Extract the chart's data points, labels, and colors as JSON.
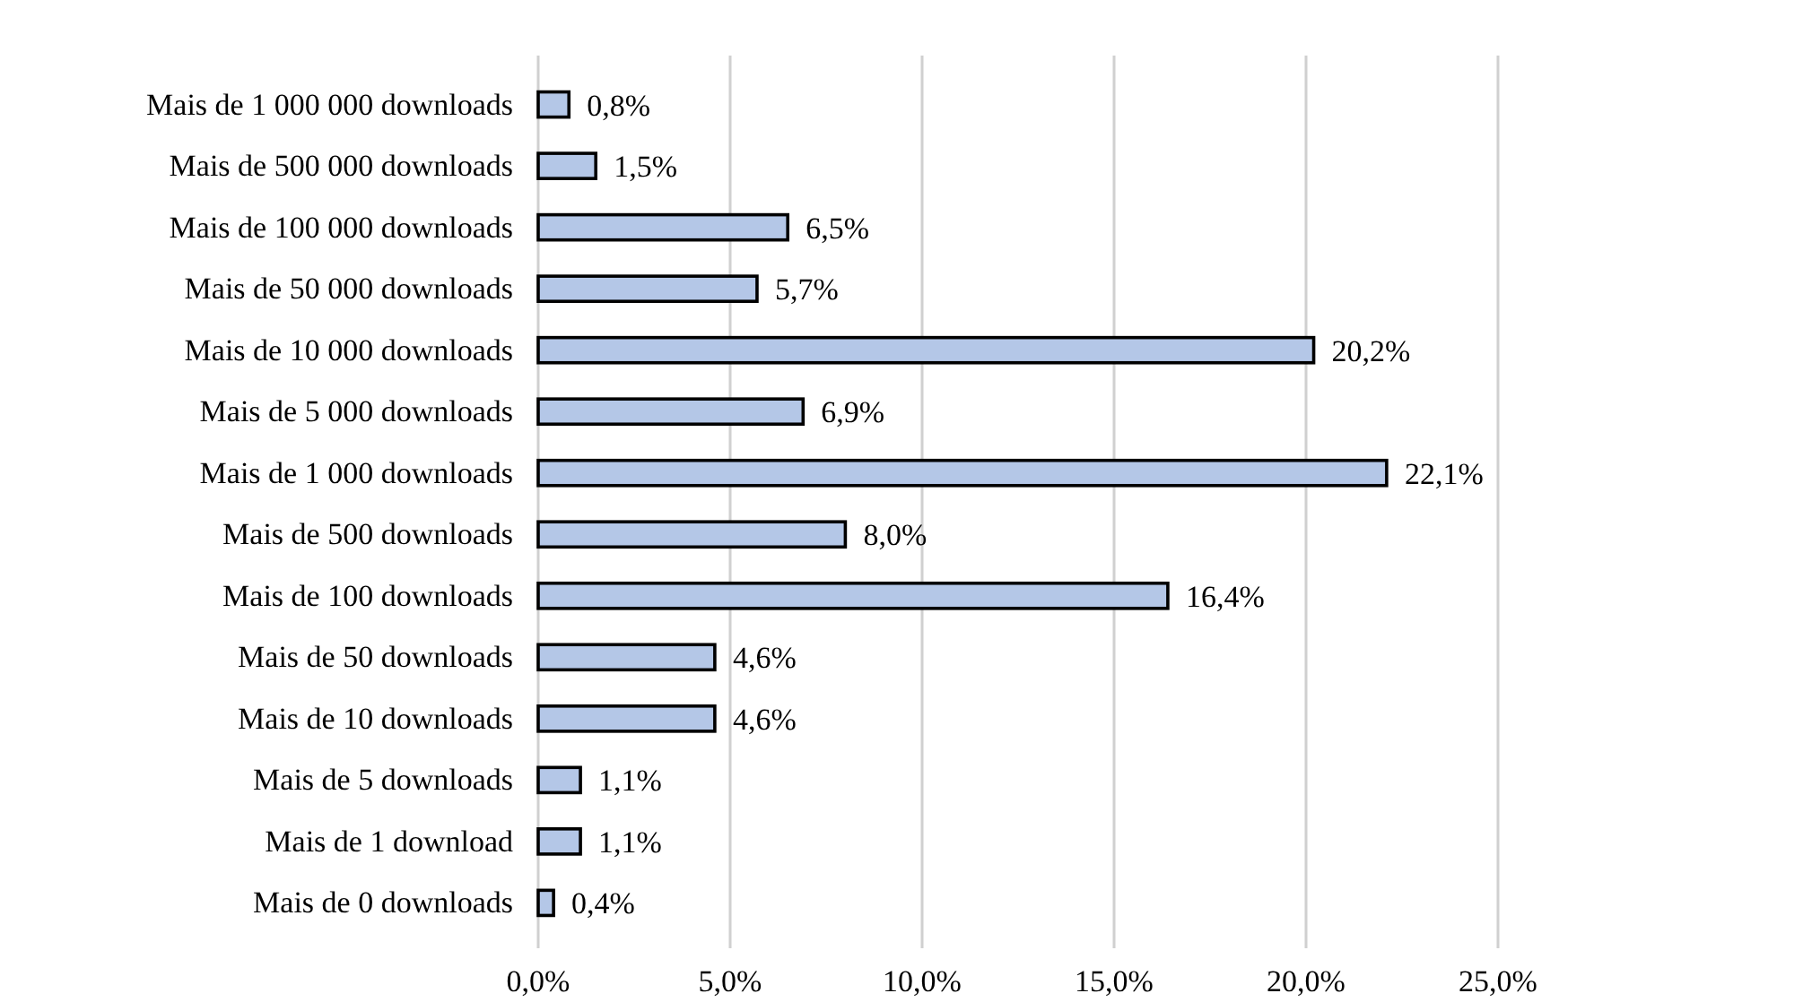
{
  "chart_data": {
    "type": "bar",
    "orientation": "horizontal",
    "categories": [
      "Mais de 1 000 000 downloads",
      "Mais de 500 000 downloads",
      "Mais de 100 000 downloads",
      "Mais de 50 000 downloads",
      "Mais de 10 000 downloads",
      "Mais de 5 000 downloads",
      "Mais de 1 000 downloads",
      "Mais de 500 downloads",
      "Mais de 100 downloads",
      "Mais de 50 downloads",
      "Mais de 10 downloads",
      "Mais de 5 downloads",
      "Mais de 1 download",
      "Mais de 0 downloads"
    ],
    "values": [
      0.8,
      1.5,
      6.5,
      5.7,
      20.2,
      6.9,
      22.1,
      8.0,
      16.4,
      4.6,
      4.6,
      1.1,
      1.1,
      0.4
    ],
    "value_labels": [
      "0,8%",
      "1,5%",
      "6,5%",
      "5,7%",
      "20,2%",
      "6,9%",
      "22,1%",
      "8,0%",
      "16,4%",
      "4,6%",
      "4,6%",
      "1,1%",
      "1,1%",
      "0,4%"
    ],
    "color": "#b4c7e7",
    "xlim": [
      0,
      25
    ],
    "xticks": [
      {
        "value": 0,
        "label": "0,0%"
      },
      {
        "value": 5,
        "label": "5,0%"
      },
      {
        "value": 10,
        "label": "10,0%"
      },
      {
        "value": 15,
        "label": "15,0%"
      },
      {
        "value": 20,
        "label": "20,0%"
      },
      {
        "value": 25,
        "label": "25,0%"
      }
    ],
    "grid": "x"
  }
}
